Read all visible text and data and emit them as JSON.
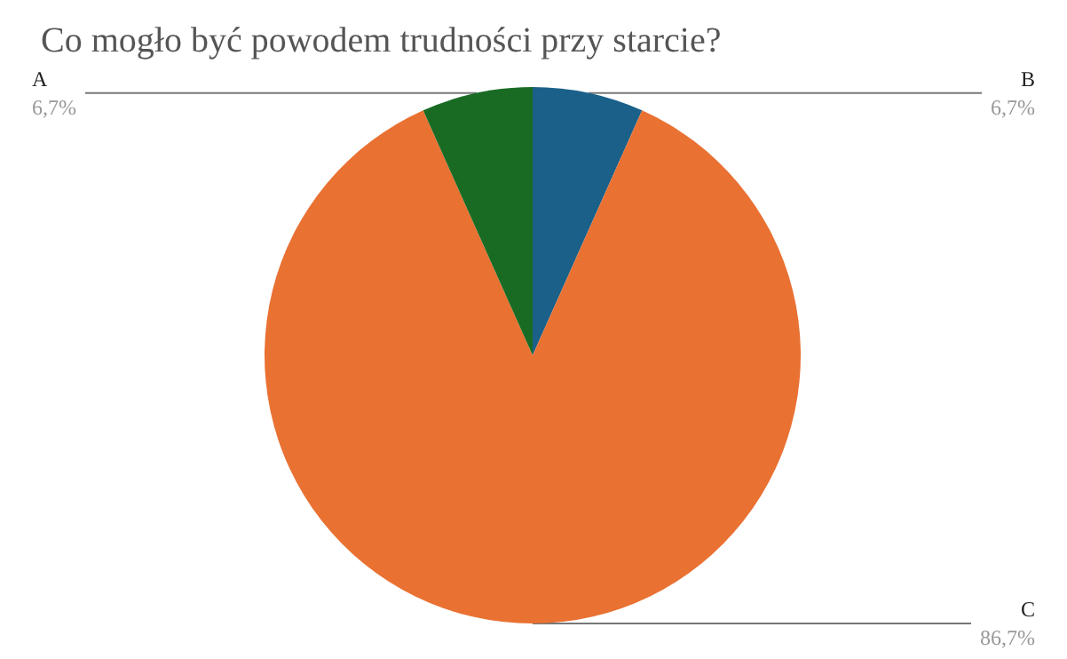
{
  "chart_data": {
    "type": "pie",
    "title": "Co mogło być powodem trudności przy starcie?",
    "categories": [
      "B",
      "C",
      "A"
    ],
    "values": [
      6.7,
      86.7,
      6.7
    ],
    "colors": [
      "#1a6089",
      "#e97132",
      "#196b24"
    ],
    "value_labels": [
      "6,7%",
      "86,7%",
      "6,7%"
    ],
    "legend": false
  }
}
